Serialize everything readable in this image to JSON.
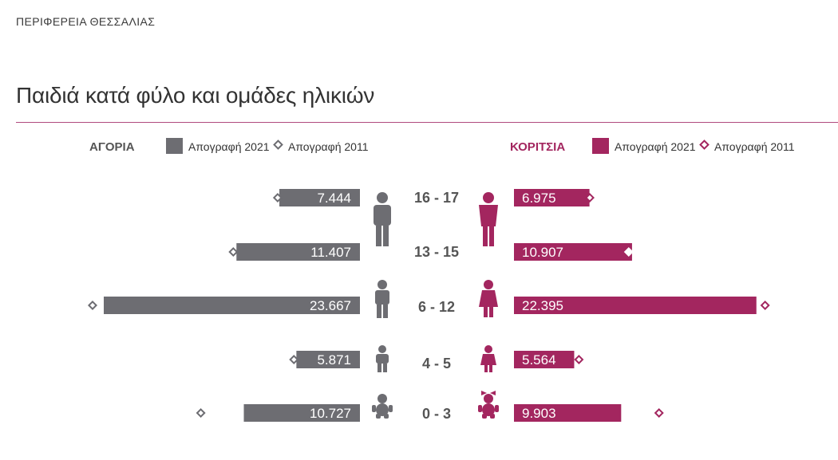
{
  "region": "ΠΕΡΙΦΕΡΕΙΑ ΘΕΣΣΑΛΙΑΣ",
  "chart_data": {
    "type": "bar",
    "title": "Παιδιά κατά φύλο και ομάδες ηλικιών",
    "orientation": "horizontal-butterfly",
    "categories": [
      "16 - 17",
      "13 - 15",
      "6 - 12",
      "4 - 5",
      "0 - 3"
    ],
    "legend": {
      "left_group": "ΑΓΟΡΙΑ",
      "right_group": "ΚΟΡΙΤΣΙΑ",
      "bar_label": "Απογραφή 2021",
      "marker_label": "Απογραφή 2011"
    },
    "series": [
      {
        "name": "ΑΓΟΡΙΑ",
        "side": "left",
        "color": "#6d6d72",
        "values_2021": [
          7444,
          11407,
          23667,
          5871,
          10727
        ],
        "labels_2021": [
          "7.444",
          "11.407",
          "23.667",
          "5.871",
          "10.727"
        ],
        "values_2011": [
          7600,
          11700,
          24700,
          6100,
          14700
        ]
      },
      {
        "name": "ΚΟΡΙΤΣΙΑ",
        "side": "right",
        "color": "#a3265f",
        "values_2021": [
          6975,
          10907,
          22395,
          5564,
          9903
        ],
        "labels_2021": [
          "6.975",
          "10.907",
          "22.395",
          "5.564",
          "9.903"
        ],
        "values_2011": [
          7000,
          10600,
          23200,
          6000,
          13400
        ]
      }
    ],
    "icons": [
      "teen-icon",
      "teen-icon",
      "child-icon",
      "kid-icon",
      "baby-icon"
    ]
  }
}
